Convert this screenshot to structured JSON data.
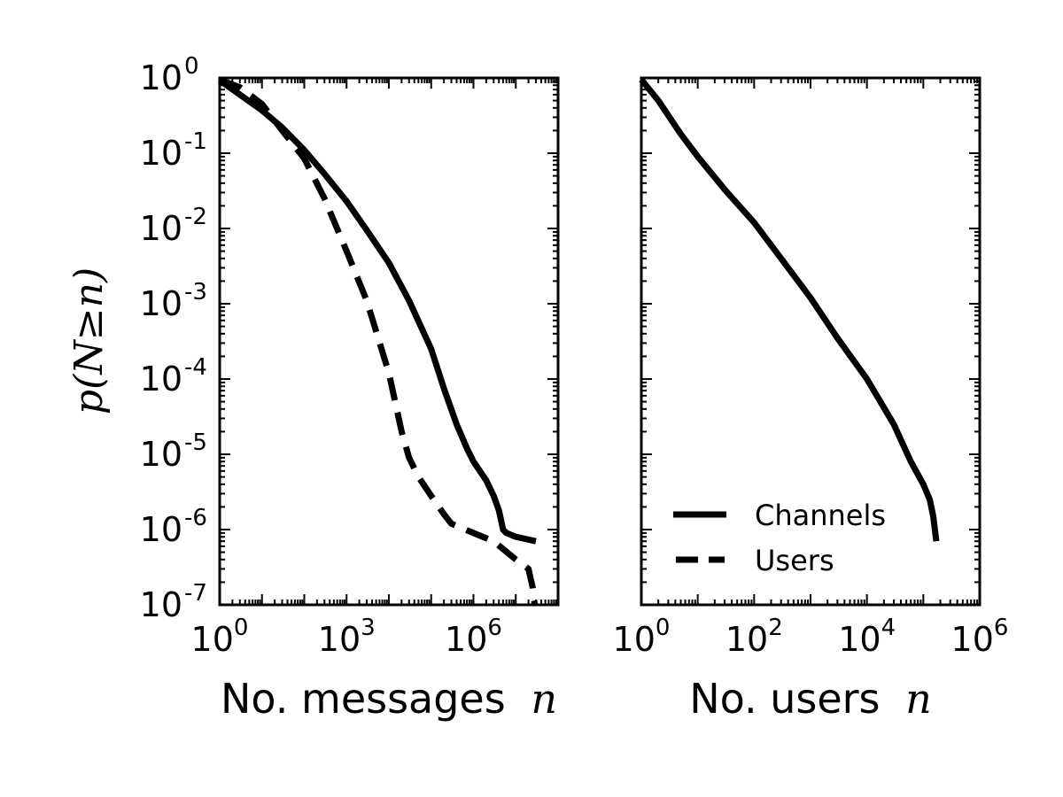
{
  "chart_data": [
    {
      "type": "line",
      "ylabel": "p(N≥n)",
      "xlabel": {
        "text": "No. messages",
        "symbol": "n"
      },
      "xscale": "log",
      "yscale": "log",
      "xlim": [
        1,
        100000000
      ],
      "ylim": [
        1e-07,
        1
      ],
      "x_tick_labels": [
        {
          "base": "10",
          "exp": "0",
          "value": 1
        },
        {
          "base": "10",
          "exp": "3",
          "value": 1000
        },
        {
          "base": "10",
          "exp": "6",
          "value": 1000000
        }
      ],
      "y_tick_labels": [
        {
          "base": "10",
          "exp": "0",
          "value": 1
        },
        {
          "base": "10",
          "exp": "-1",
          "value": 0.1
        },
        {
          "base": "10",
          "exp": "-2",
          "value": 0.01
        },
        {
          "base": "10",
          "exp": "-3",
          "value": 0.001
        },
        {
          "base": "10",
          "exp": "-4",
          "value": 0.0001
        },
        {
          "base": "10",
          "exp": "-5",
          "value": 1e-05
        },
        {
          "base": "10",
          "exp": "-6",
          "value": 1e-06
        },
        {
          "base": "10",
          "exp": "-7",
          "value": 1e-07
        }
      ],
      "series": [
        {
          "name": "Channels",
          "style": "solid",
          "x": [
            1,
            3,
            10,
            30,
            100,
            300,
            1000,
            3000,
            10000,
            30000,
            100000,
            200000,
            400000,
            700000,
            1000000,
            2000000,
            3000000,
            4000000,
            5000000,
            6000000,
            10000000,
            30000000
          ],
          "y": [
            0.93,
            0.6,
            0.37,
            0.22,
            0.11,
            0.053,
            0.023,
            0.0095,
            0.0035,
            0.0011,
            0.00025,
            7.5e-05,
            2.5e-05,
            1.2e-05,
            8e-06,
            4.5e-06,
            2.8e-06,
            1.8e-06,
            1e-06,
            9e-07,
            8e-07,
            7e-07
          ]
        },
        {
          "name": "Users",
          "style": "dashed",
          "x": [
            1,
            3,
            10,
            30,
            100,
            300,
            1000,
            3000,
            10000,
            20000,
            30000,
            50000,
            100000,
            200000,
            300000,
            1000000,
            3000000,
            10000000,
            20000000,
            25000000,
            28000000
          ],
          "y": [
            0.95,
            0.75,
            0.45,
            0.2,
            0.085,
            0.025,
            0.005,
            0.0011,
            0.00012,
            2e-05,
            9e-06,
            5e-06,
            2.8e-06,
            1.6e-06,
            1.2e-06,
            9e-07,
            7e-07,
            4e-07,
            3e-07,
            1.7e-07,
            1e-07
          ]
        }
      ]
    },
    {
      "type": "line",
      "xlabel": {
        "text": "No. users",
        "symbol": "n"
      },
      "xscale": "log",
      "yscale": "log",
      "xlim": [
        1,
        1000000
      ],
      "ylim": [
        1e-07,
        1
      ],
      "x_tick_labels": [
        {
          "base": "10",
          "exp": "0",
          "value": 1
        },
        {
          "base": "10",
          "exp": "2",
          "value": 100
        },
        {
          "base": "10",
          "exp": "4",
          "value": 10000
        },
        {
          "base": "10",
          "exp": "6",
          "value": 1000000
        }
      ],
      "series": [
        {
          "name": "Channels",
          "style": "solid",
          "x": [
            1,
            2,
            5,
            10,
            30,
            100,
            300,
            1000,
            3000,
            10000,
            30000,
            60000,
            100000,
            130000,
            150000,
            170000
          ],
          "y": [
            0.95,
            0.5,
            0.18,
            0.09,
            0.033,
            0.012,
            0.004,
            0.0012,
            0.00035,
            0.0001,
            2.5e-05,
            8e-06,
            4e-06,
            2.5e-06,
            1.5e-06,
            7e-07
          ]
        }
      ],
      "legend": {
        "position": "bottom-left",
        "entries": [
          {
            "label": "Channels",
            "style": "solid"
          },
          {
            "label": "Users",
            "style": "dashed"
          }
        ]
      }
    }
  ]
}
